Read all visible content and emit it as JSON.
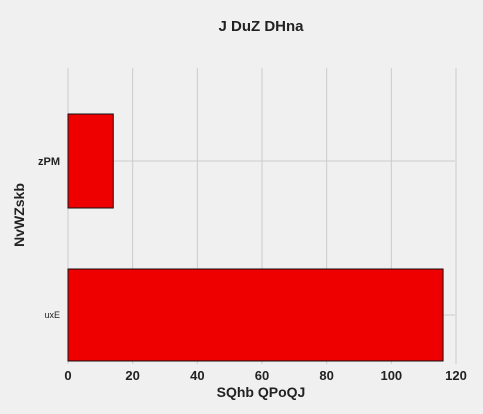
{
  "chart_data": {
    "type": "bar",
    "orientation": "horizontal",
    "title": "J DuZ DHna",
    "xlabel": "SQhb  QPoQJ",
    "ylabel": "NvWZskb",
    "categories": [
      "zPM",
      "uxE"
    ],
    "series": [
      {
        "values": [
          14,
          116
        ],
        "color": "#ee0000"
      }
    ],
    "xlim": [
      0,
      120
    ],
    "xticks": [
      0,
      20,
      40,
      60,
      80,
      100,
      120
    ],
    "grid": true,
    "legend": "none",
    "background": "#f0f0f0"
  }
}
